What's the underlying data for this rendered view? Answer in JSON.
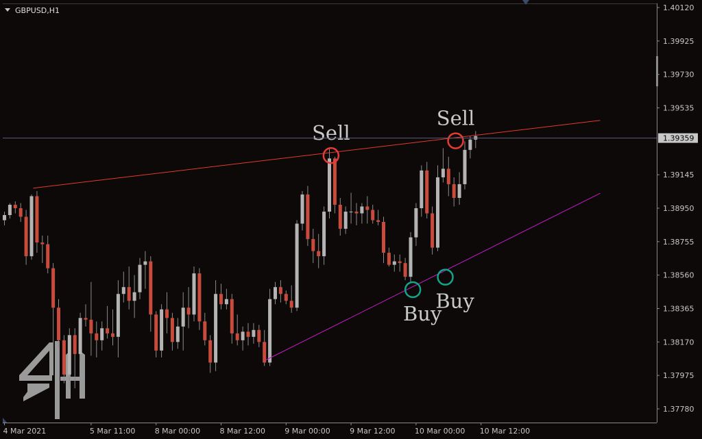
{
  "chart_data": {
    "type": "candlestick",
    "symbol_label": "GBPUSD,H1",
    "y_ticks": [
      "1.40120",
      "1.39925",
      "1.39730",
      "1.39535",
      "1.39145",
      "1.38950",
      "1.38755",
      "1.38560",
      "1.38365",
      "1.38170",
      "1.37975",
      "1.37780"
    ],
    "ylim": [
      1.3778,
      1.4012
    ],
    "x_ticks": [
      {
        "label": "4 Mar 2021",
        "index": 0
      },
      {
        "label": "5 Mar 11:00",
        "index": 16
      },
      {
        "label": "8 Mar 00:00",
        "index": 28
      },
      {
        "label": "8 Mar 12:00",
        "index": 40
      },
      {
        "label": "9 Mar 00:00",
        "index": 52
      },
      {
        "label": "9 Mar 12:00",
        "index": 64
      },
      {
        "label": "10 Mar 00:00",
        "index": 76
      },
      {
        "label": "10 Mar 12:00",
        "index": 88
      }
    ],
    "current_price": "1.39359",
    "bull_color": "#b4b4b4",
    "bear_color": "#c84b3c",
    "candles": [
      [
        1.3888,
        1.3893,
        1.3885,
        1.3891
      ],
      [
        1.3891,
        1.3898,
        1.3889,
        1.3897
      ],
      [
        1.3897,
        1.3899,
        1.3892,
        1.3895
      ],
      [
        1.3895,
        1.3898,
        1.3887,
        1.389
      ],
      [
        1.389,
        1.3894,
        1.3862,
        1.3867
      ],
      [
        1.3867,
        1.3903,
        1.3865,
        1.3902
      ],
      [
        1.3902,
        1.3905,
        1.3869,
        1.3875
      ],
      [
        1.3875,
        1.3879,
        1.3863,
        1.3874
      ],
      [
        1.3874,
        1.3879,
        1.3857,
        1.386
      ],
      [
        1.386,
        1.3863,
        1.3813,
        1.3837
      ],
      [
        1.3837,
        1.3842,
        1.3813,
        1.3818
      ],
      [
        1.3818,
        1.3821,
        1.3793,
        1.3798
      ],
      [
        1.3798,
        1.3825,
        1.379,
        1.3821
      ],
      [
        1.3821,
        1.3825,
        1.379,
        1.381
      ],
      [
        1.381,
        1.3834,
        1.3806,
        1.3831
      ],
      [
        1.3831,
        1.3839,
        1.3826,
        1.383
      ],
      [
        1.383,
        1.3852,
        1.3809,
        1.3822
      ],
      [
        1.3822,
        1.3829,
        1.3808,
        1.3818
      ],
      [
        1.3818,
        1.3829,
        1.3812,
        1.3825
      ],
      [
        1.3825,
        1.3838,
        1.3819,
        1.3822
      ],
      [
        1.3822,
        1.3836,
        1.3815,
        1.382
      ],
      [
        1.382,
        1.3853,
        1.3808,
        1.3845
      ],
      [
        1.3845,
        1.3858,
        1.384,
        1.3849
      ],
      [
        1.3849,
        1.3861,
        1.3836,
        1.3841
      ],
      [
        1.3841,
        1.3856,
        1.3831,
        1.3846
      ],
      [
        1.3846,
        1.3866,
        1.3842,
        1.3862
      ],
      [
        1.3862,
        1.387,
        1.3848,
        1.3864
      ],
      [
        1.3864,
        1.3867,
        1.3823,
        1.3833
      ],
      [
        1.3833,
        1.3835,
        1.3808,
        1.3812
      ],
      [
        1.3812,
        1.3839,
        1.3808,
        1.3836
      ],
      [
        1.3836,
        1.3846,
        1.3822,
        1.3831
      ],
      [
        1.3831,
        1.3834,
        1.3812,
        1.3817
      ],
      [
        1.3817,
        1.3831,
        1.3813,
        1.3826
      ],
      [
        1.3826,
        1.3846,
        1.3812,
        1.3837
      ],
      [
        1.3837,
        1.3849,
        1.3825,
        1.3833
      ],
      [
        1.3833,
        1.3861,
        1.3829,
        1.3857
      ],
      [
        1.3857,
        1.386,
        1.3824,
        1.3829
      ],
      [
        1.3829,
        1.3834,
        1.3815,
        1.3818
      ],
      [
        1.3818,
        1.3821,
        1.3799,
        1.3805
      ],
      [
        1.3805,
        1.3853,
        1.38,
        1.3845
      ],
      [
        1.3845,
        1.3851,
        1.3836,
        1.3839
      ],
      [
        1.3839,
        1.3848,
        1.3836,
        1.3842
      ],
      [
        1.3842,
        1.3845,
        1.3816,
        1.3822
      ],
      [
        1.3822,
        1.3833,
        1.3815,
        1.3818
      ],
      [
        1.3818,
        1.3826,
        1.3812,
        1.3823
      ],
      [
        1.3823,
        1.3828,
        1.3815,
        1.382
      ],
      [
        1.382,
        1.3828,
        1.3816,
        1.3824
      ],
      [
        1.3824,
        1.3827,
        1.3814,
        1.3817
      ],
      [
        1.3817,
        1.3824,
        1.3803,
        1.3805
      ],
      [
        1.3805,
        1.3848,
        1.3803,
        1.3842
      ],
      [
        1.3842,
        1.3852,
        1.3839,
        1.3849
      ],
      [
        1.3849,
        1.3853,
        1.384,
        1.3845
      ],
      [
        1.3845,
        1.3847,
        1.3839,
        1.3841
      ],
      [
        1.3841,
        1.385,
        1.3834,
        1.3837
      ],
      [
        1.3837,
        1.3888,
        1.3835,
        1.3886
      ],
      [
        1.3886,
        1.3905,
        1.3882,
        1.3903
      ],
      [
        1.3903,
        1.3908,
        1.3873,
        1.3877
      ],
      [
        1.3877,
        1.3883,
        1.3863,
        1.387
      ],
      [
        1.387,
        1.388,
        1.386,
        1.3867
      ],
      [
        1.3867,
        1.3896,
        1.3862,
        1.3893
      ],
      [
        1.3893,
        1.393,
        1.3889,
        1.3924
      ],
      [
        1.3924,
        1.3925,
        1.3892,
        1.3897
      ],
      [
        1.3897,
        1.3901,
        1.3879,
        1.3883
      ],
      [
        1.3883,
        1.3896,
        1.388,
        1.3893
      ],
      [
        1.3893,
        1.3904,
        1.3886,
        1.3893
      ],
      [
        1.3893,
        1.3898,
        1.3885,
        1.3892
      ],
      [
        1.3892,
        1.3898,
        1.3886,
        1.3896
      ],
      [
        1.3896,
        1.3902,
        1.3886,
        1.3894
      ],
      [
        1.3894,
        1.3897,
        1.3886,
        1.3888
      ],
      [
        1.3888,
        1.3894,
        1.3885,
        1.3887
      ],
      [
        1.3887,
        1.389,
        1.3863,
        1.3869
      ],
      [
        1.3869,
        1.3872,
        1.3861,
        1.3862
      ],
      [
        1.3862,
        1.3868,
        1.3858,
        1.3864
      ],
      [
        1.3864,
        1.3868,
        1.3858,
        1.3863
      ],
      [
        1.3863,
        1.3866,
        1.3853,
        1.3855
      ],
      [
        1.3855,
        1.3881,
        1.3852,
        1.3878
      ],
      [
        1.3878,
        1.3898,
        1.3873,
        1.3895
      ],
      [
        1.3895,
        1.392,
        1.389,
        1.3917
      ],
      [
        1.3917,
        1.3922,
        1.3889,
        1.3892
      ],
      [
        1.3892,
        1.3896,
        1.3868,
        1.3872
      ],
      [
        1.3872,
        1.392,
        1.387,
        1.3913
      ],
      [
        1.3913,
        1.393,
        1.391,
        1.3918
      ],
      [
        1.3918,
        1.3925,
        1.3902,
        1.3909
      ],
      [
        1.3909,
        1.3913,
        1.3896,
        1.3901
      ],
      [
        1.3901,
        1.3916,
        1.3897,
        1.3909
      ],
      [
        1.3909,
        1.3934,
        1.3906,
        1.3929
      ],
      [
        1.3929,
        1.3937,
        1.3924,
        1.3935
      ],
      [
        1.3935,
        1.394,
        1.393,
        1.3937
      ]
    ],
    "trendlines": [
      {
        "name": "resistance",
        "color": "#e53a2e",
        "x0": 5.3,
        "y0": 1.39067,
        "x1": 110,
        "y1": 1.39462
      },
      {
        "name": "support",
        "color": "#cc19cc",
        "x0": 48.2,
        "y0": 1.38064,
        "x1": 110,
        "y1": 1.39037
      }
    ],
    "annotations": [
      {
        "text": "Sell",
        "type": "sell",
        "x": 60.3,
        "y": 1.39257
      },
      {
        "text": "Sell",
        "type": "sell",
        "x": 83.3,
        "y": 1.39343
      },
      {
        "text": "Buy",
        "type": "buy",
        "x": 75.4,
        "y": 1.38475
      },
      {
        "text": "Buy",
        "type": "buy",
        "x": 81.4,
        "y": 1.38548
      }
    ],
    "sell_color": "#e83b32",
    "buy_color": "#14a48c"
  }
}
